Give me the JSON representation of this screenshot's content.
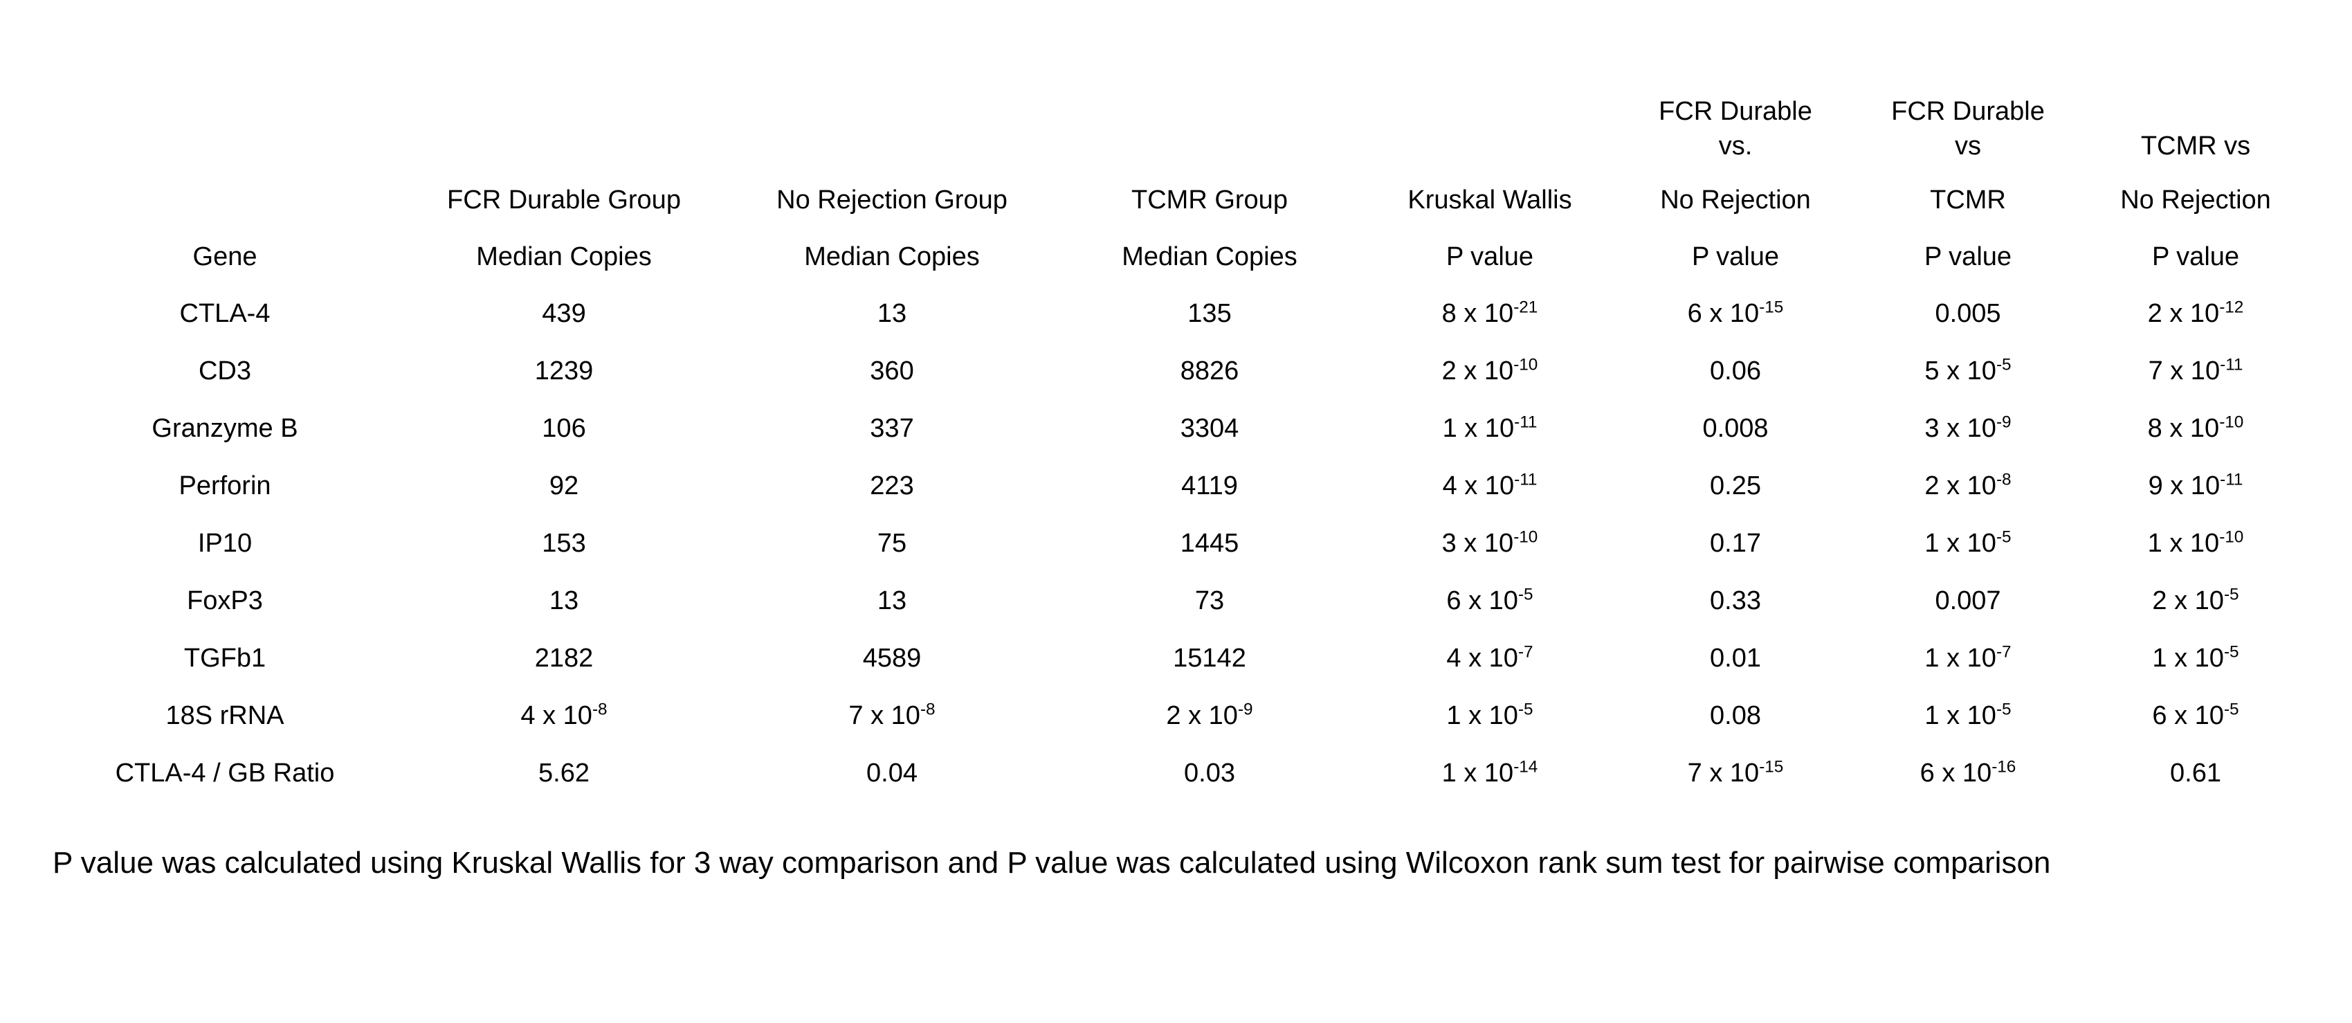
{
  "colors": {
    "background": "#ffffff",
    "text": "#000000"
  },
  "table": {
    "columns": [
      "Gene",
      "FCR Durable Group Median Copies",
      "No Rejection Group Median Copies",
      "TCMR Group Median Copies",
      "Kruskal Wallis P value",
      "FCR Durable vs. No Rejection P value",
      "FCR Durable vs TCMR P value",
      "TCMR vs No Rejection P value"
    ],
    "header_rows": [
      [
        "",
        "",
        "",
        "",
        "",
        "FCR Durable",
        "FCR Durable",
        ""
      ],
      [
        "",
        "",
        "",
        "",
        "",
        "vs.",
        "vs",
        "TCMR vs"
      ],
      [
        "",
        "FCR Durable Group",
        "No Rejection Group",
        "TCMR Group",
        "Kruskal Wallis",
        "No Rejection",
        "TCMR",
        "No Rejection"
      ],
      [
        "Gene",
        "Median Copies",
        "Median Copies",
        "Median Copies",
        "P value",
        "P value",
        "P value",
        "P value"
      ]
    ],
    "rows": [
      [
        "CTLA-4",
        "439",
        "13",
        "135",
        "8 x 10^-21",
        "6 x 10^-15",
        "0.005",
        "2 x 10^-12"
      ],
      [
        "CD3",
        "1239",
        "360",
        "8826",
        "2 x 10^-10",
        "0.06",
        "5 x 10^-5",
        "7 x 10^-11"
      ],
      [
        "Granzyme B",
        "106",
        "337",
        "3304",
        "1 x 10^-11",
        "0.008",
        "3 x 10^-9",
        "8 x 10^-10"
      ],
      [
        "Perforin",
        "92",
        "223",
        "4119",
        "4 x 10^-11",
        "0.25",
        "2 x 10^-8",
        "9 x 10^-11"
      ],
      [
        "IP10",
        "153",
        "75",
        "1445",
        "3 x 10^-10",
        "0.17",
        "1 x 10^-5",
        "1 x 10^-10"
      ],
      [
        "FoxP3",
        "13",
        "13",
        "73",
        "6 x 10^-5",
        "0.33",
        "0.007",
        "2 x 10^-5"
      ],
      [
        "TGFb1",
        "2182",
        "4589",
        "15142",
        "4 x 10^-7",
        "0.01",
        "1 x 10^-7",
        "1 x 10^-5"
      ],
      [
        "18S rRNA",
        "4 x 10^-8",
        "7 x 10^-8",
        "2 x 10^-9",
        "1 x 10^-5",
        "0.08",
        "1 x 10^-5",
        "6 x 10^-5"
      ],
      [
        "CTLA-4 / GB Ratio",
        "5.62",
        "0.04",
        "0.03",
        "1 x 10^-14",
        "7 x 10^-15",
        "6 x 10^-16",
        "0.61"
      ]
    ]
  },
  "footnote": "P value was calculated using Kruskal Wallis for 3 way comparison and P value was calculated using Wilcoxon rank sum test for pairwise comparison"
}
